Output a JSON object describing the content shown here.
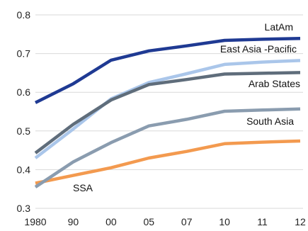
{
  "chart_data": {
    "type": "line",
    "title": "",
    "xlabel": "",
    "ylabel": "",
    "categories": [
      "1980",
      "90",
      "00",
      "05",
      "07",
      "10",
      "11",
      "12"
    ],
    "ylim": [
      0.3,
      0.8
    ],
    "yticks": [
      "0.3",
      "0.4",
      "0.5",
      "0.6",
      "0.7",
      "0.8"
    ],
    "grid": "horizontal",
    "legend": "inline labels at right",
    "series": [
      {
        "name": "LatAm",
        "color": "#1f3a93",
        "values": [
          0.573,
          0.622,
          0.683,
          0.707,
          0.72,
          0.734,
          0.737,
          0.739
        ]
      },
      {
        "name": "East Asia -Pacific",
        "color": "#aac6ea",
        "values": [
          0.43,
          0.505,
          0.583,
          0.625,
          0.648,
          0.672,
          0.678,
          0.682
        ]
      },
      {
        "name": "Arab States",
        "color": "#5f6d7b",
        "values": [
          0.443,
          0.517,
          0.58,
          0.62,
          0.633,
          0.647,
          0.649,
          0.651
        ]
      },
      {
        "name": "South Asia",
        "color": "#8a9caf",
        "values": [
          0.355,
          0.42,
          0.47,
          0.513,
          0.53,
          0.551,
          0.554,
          0.557
        ]
      },
      {
        "name": "SSA",
        "color": "#f39a4f",
        "values": [
          0.365,
          0.385,
          0.405,
          0.43,
          0.447,
          0.467,
          0.471,
          0.474
        ]
      }
    ]
  }
}
